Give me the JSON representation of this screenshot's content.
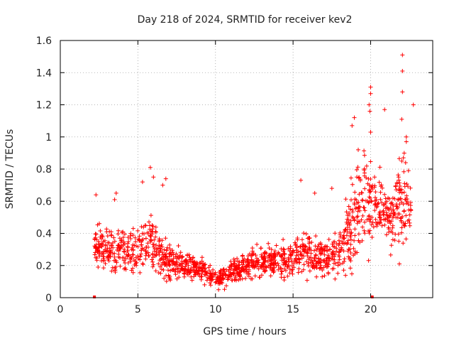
{
  "chart_data": {
    "type": "scatter",
    "title": "Day 218 of 2024, SRMTID for receiver kev2",
    "xlabel": "GPS time / hours",
    "ylabel": "SRMTID / TECUs",
    "xlim": [
      0,
      24
    ],
    "ylim": [
      0,
      1.6
    ],
    "x_ticks": [
      0,
      5,
      10,
      15,
      20
    ],
    "x_tick_labels": [
      "0",
      "5",
      "10",
      "15",
      "20"
    ],
    "y_ticks": [
      0,
      0.2,
      0.4,
      0.6,
      0.8,
      1.0,
      1.2,
      1.4,
      1.6
    ],
    "y_tick_labels": [
      "0",
      "0.2",
      "0.4",
      "0.6",
      "0.8",
      "1",
      "1.2",
      "1.4",
      "1.6"
    ],
    "grid": true,
    "marker": "+",
    "colors": {
      "points": "#ff0000",
      "axes": "#000000",
      "grid": "#a0a0a0"
    },
    "zero_markers": {
      "x": [
        2.2,
        20.1
      ],
      "y": [
        0,
        0
      ]
    },
    "series": [
      {
        "name": "SRMTID",
        "envelope": {
          "hours": [
            2.2,
            3.0,
            4.0,
            5.0,
            5.8,
            6.5,
            7.5,
            8.5,
            9.3,
            9.8,
            10.3,
            11.0,
            12.0,
            13.0,
            14.0,
            15.0,
            15.5,
            16.5,
            17.5,
            18.3,
            18.8,
            19.3,
            19.8,
            20.3,
            21.0,
            21.7,
            22.1,
            22.6
          ],
          "mean": [
            0.33,
            0.28,
            0.3,
            0.3,
            0.36,
            0.26,
            0.2,
            0.19,
            0.17,
            0.13,
            0.12,
            0.16,
            0.2,
            0.23,
            0.22,
            0.25,
            0.3,
            0.25,
            0.27,
            0.33,
            0.45,
            0.55,
            0.62,
            0.6,
            0.5,
            0.55,
            0.65,
            0.55
          ],
          "spread": [
            0.1,
            0.12,
            0.12,
            0.12,
            0.15,
            0.12,
            0.08,
            0.07,
            0.06,
            0.04,
            0.04,
            0.06,
            0.07,
            0.08,
            0.08,
            0.1,
            0.12,
            0.1,
            0.12,
            0.15,
            0.22,
            0.25,
            0.28,
            0.18,
            0.12,
            0.2,
            0.28,
            0.15
          ]
        },
        "count": 1500,
        "peaks": [
          {
            "x": 22.05,
            "y": 1.51
          },
          {
            "x": 22.05,
            "y": 1.41
          },
          {
            "x": 22.05,
            "y": 1.28
          },
          {
            "x": 22.0,
            "y": 1.11
          },
          {
            "x": 22.75,
            "y": 1.2
          },
          {
            "x": 20.0,
            "y": 1.31
          },
          {
            "x": 20.0,
            "y": 1.27
          },
          {
            "x": 19.9,
            "y": 1.2
          },
          {
            "x": 19.95,
            "y": 1.16
          },
          {
            "x": 20.9,
            "y": 1.17
          },
          {
            "x": 18.95,
            "y": 1.12
          },
          {
            "x": 18.8,
            "y": 1.07
          },
          {
            "x": 20.0,
            "y": 1.03
          },
          {
            "x": 22.3,
            "y": 1.0
          },
          {
            "x": 22.3,
            "y": 0.97
          },
          {
            "x": 19.2,
            "y": 0.92
          },
          {
            "x": 21.8,
            "y": 0.75
          },
          {
            "x": 5.8,
            "y": 0.81
          },
          {
            "x": 6.0,
            "y": 0.75
          },
          {
            "x": 6.8,
            "y": 0.74
          },
          {
            "x": 6.6,
            "y": 0.7
          },
          {
            "x": 15.5,
            "y": 0.73
          },
          {
            "x": 17.5,
            "y": 0.68
          },
          {
            "x": 16.4,
            "y": 0.65
          },
          {
            "x": 3.6,
            "y": 0.65
          },
          {
            "x": 2.3,
            "y": 0.64
          },
          {
            "x": 3.5,
            "y": 0.61
          },
          {
            "x": 5.3,
            "y": 0.72
          },
          {
            "x": 9.3,
            "y": 0.08
          },
          {
            "x": 10.2,
            "y": 0.05
          },
          {
            "x": 21.85,
            "y": 0.21
          }
        ]
      }
    ]
  }
}
